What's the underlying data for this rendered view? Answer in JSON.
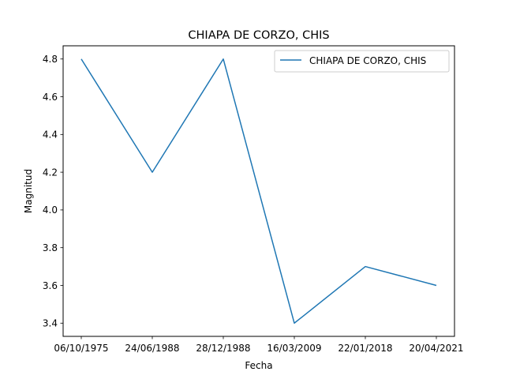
{
  "chart_data": {
    "type": "line",
    "title": "CHIAPA DE CORZO, CHIS",
    "xlabel": "Fecha",
    "ylabel": "Magnitud",
    "categories": [
      "06/10/1975",
      "24/06/1988",
      "28/12/1988",
      "16/03/2009",
      "22/01/2018",
      "20/04/2021"
    ],
    "series": [
      {
        "name": "CHIAPA DE CORZO, CHIS",
        "values": [
          4.8,
          4.2,
          4.8,
          3.4,
          3.7,
          3.6
        ],
        "color": "#1f77b4"
      }
    ],
    "ylim": [
      3.33,
      4.87
    ],
    "yticks": [
      "3.4",
      "3.6",
      "3.8",
      "4.0",
      "4.2",
      "4.4",
      "4.6",
      "4.8"
    ],
    "grid": false,
    "legend_position": "top-right"
  }
}
